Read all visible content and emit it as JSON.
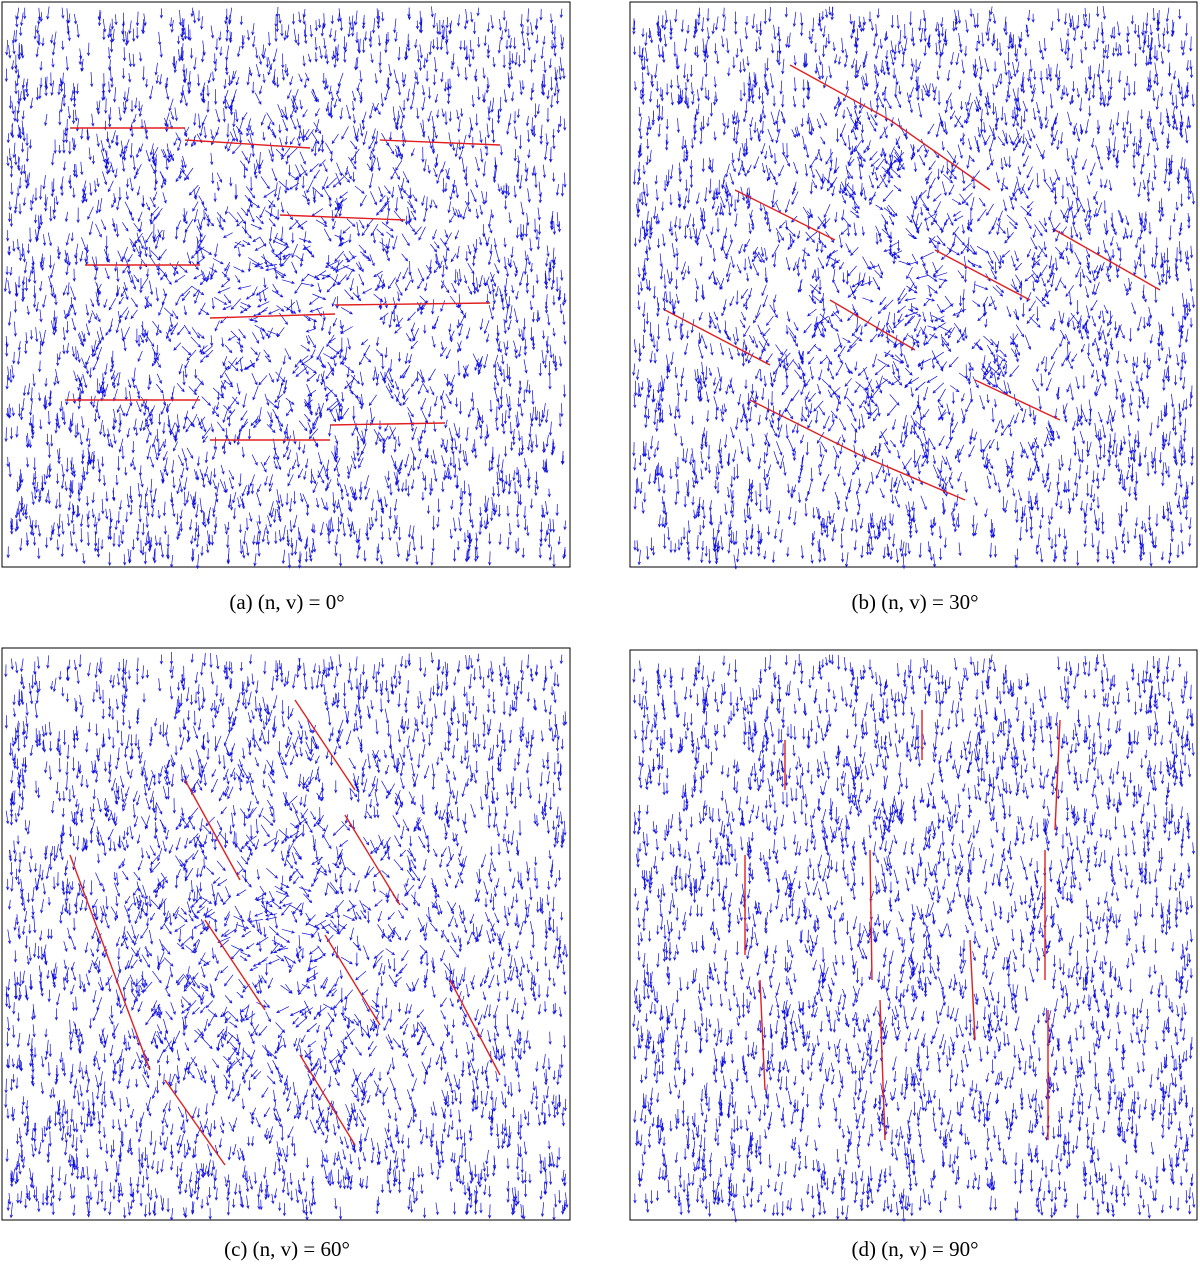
{
  "panels": [
    {
      "caption": "(a) (n, v) = 0°"
    },
    {
      "caption": "(b) (n, v) = 30°"
    },
    {
      "caption": "(c) (n, v) = 60°"
    },
    {
      "caption": "(d) (n, v) = 90°"
    }
  ]
}
